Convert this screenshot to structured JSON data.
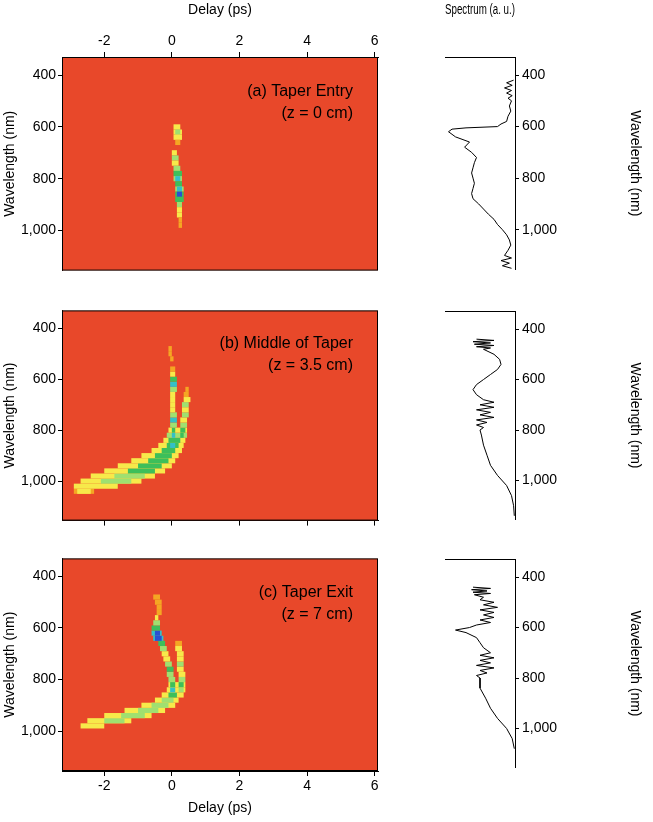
{
  "chart_data": [
    {
      "type": "heatmap",
      "annotation": [
        "(a) Taper Entry",
        "(z = 0 cm)"
      ],
      "xlabel": "Delay (ps)",
      "ylabel": "Wavelength (nm)",
      "xlim": [
        -3.25,
        6.1
      ],
      "xticks": [
        -2,
        0,
        2,
        4,
        6
      ],
      "ylim": [
        330,
        1155
      ],
      "yticks": [
        400,
        600,
        800,
        1000
      ],
      "grid": false,
      "zlim": [
        0,
        6
      ],
      "cell_height": 20,
      "cells": [
        [
          600,
          0.05,
          0.25,
          2
        ],
        [
          620,
          0.05,
          0.3,
          2
        ],
        [
          620,
          0.1,
          0.25,
          3
        ],
        [
          640,
          0.05,
          0.3,
          2
        ],
        [
          660,
          0.1,
          0.25,
          1
        ],
        [
          700,
          0.0,
          0.15,
          2
        ],
        [
          720,
          0.0,
          0.2,
          3
        ],
        [
          740,
          0.0,
          0.2,
          2
        ],
        [
          760,
          0.05,
          0.25,
          3
        ],
        [
          780,
          0.05,
          0.3,
          4
        ],
        [
          800,
          0.05,
          0.3,
          3
        ],
        [
          800,
          0.1,
          0.25,
          5
        ],
        [
          820,
          0.1,
          0.3,
          4
        ],
        [
          840,
          0.1,
          0.35,
          3
        ],
        [
          840,
          0.15,
          0.3,
          5
        ],
        [
          860,
          0.1,
          0.35,
          4
        ],
        [
          860,
          0.15,
          0.3,
          6
        ],
        [
          880,
          0.1,
          0.35,
          4
        ],
        [
          900,
          0.15,
          0.3,
          3
        ],
        [
          920,
          0.15,
          0.3,
          2
        ],
        [
          940,
          0.15,
          0.3,
          2
        ],
        [
          960,
          0.2,
          0.3,
          1
        ],
        [
          980,
          0.2,
          0.3,
          1
        ]
      ]
    },
    {
      "type": "heatmap",
      "annotation": [
        "(b) Middle of Taper",
        "(z = 3.5 cm)"
      ],
      "ylabel": "Wavelength (nm)",
      "xlim": [
        -3.25,
        6.1
      ],
      "xticks": [
        -2,
        0,
        2,
        4,
        6
      ],
      "ylim": [
        330,
        1155
      ],
      "yticks": [
        400,
        600,
        800,
        1000
      ],
      "grid": false,
      "tick_labels": "y",
      "zlim": [
        0,
        6
      ],
      "cell_height": 20,
      "cells": [
        [
          1040,
          -2.9,
          -2.3,
          1
        ],
        [
          1040,
          -2.8,
          -2.4,
          2
        ],
        [
          1020,
          -2.9,
          -1.6,
          2
        ],
        [
          1000,
          -2.7,
          -0.9,
          2
        ],
        [
          1000,
          -2.1,
          -1.2,
          3
        ],
        [
          980,
          -2.4,
          -0.5,
          2
        ],
        [
          980,
          -1.7,
          -0.8,
          3
        ],
        [
          960,
          -2.0,
          -0.2,
          2
        ],
        [
          960,
          -1.3,
          -0.5,
          4
        ],
        [
          940,
          -1.6,
          0.0,
          2
        ],
        [
          940,
          -1.0,
          -0.3,
          4
        ],
        [
          920,
          -1.2,
          0.1,
          2
        ],
        [
          920,
          -0.7,
          -0.1,
          4
        ],
        [
          900,
          -0.9,
          0.2,
          2
        ],
        [
          900,
          -0.5,
          0.0,
          4
        ],
        [
          880,
          -0.6,
          0.3,
          2
        ],
        [
          880,
          -0.3,
          0.1,
          4
        ],
        [
          860,
          -0.4,
          0.35,
          2
        ],
        [
          860,
          -0.15,
          0.2,
          4
        ],
        [
          860,
          -0.05,
          0.1,
          5
        ],
        [
          840,
          -0.25,
          0.4,
          2
        ],
        [
          840,
          -0.1,
          0.25,
          4
        ],
        [
          820,
          -0.15,
          0.45,
          3
        ],
        [
          820,
          0.0,
          0.1,
          5
        ],
        [
          820,
          0.25,
          0.35,
          4
        ],
        [
          800,
          -0.1,
          0.45,
          2
        ],
        [
          800,
          0.0,
          0.1,
          4
        ],
        [
          800,
          0.25,
          0.4,
          4
        ],
        [
          780,
          -0.05,
          0.15,
          3
        ],
        [
          780,
          0.25,
          0.45,
          3
        ],
        [
          760,
          -0.05,
          0.15,
          5
        ],
        [
          760,
          0.25,
          0.45,
          2
        ],
        [
          740,
          -0.05,
          0.15,
          3
        ],
        [
          740,
          0.3,
          0.5,
          3
        ],
        [
          720,
          -0.05,
          0.1,
          2
        ],
        [
          720,
          0.3,
          0.5,
          2
        ],
        [
          700,
          -0.05,
          0.1,
          2
        ],
        [
          700,
          0.3,
          0.5,
          3
        ],
        [
          680,
          -0.05,
          0.1,
          2
        ],
        [
          680,
          0.35,
          0.55,
          2
        ],
        [
          660,
          -0.05,
          0.1,
          2
        ],
        [
          660,
          0.35,
          0.5,
          1
        ],
        [
          640,
          -0.05,
          0.15,
          3
        ],
        [
          640,
          0.4,
          0.5,
          1
        ],
        [
          620,
          -0.05,
          0.15,
          5
        ],
        [
          600,
          -0.05,
          0.15,
          4
        ],
        [
          580,
          -0.05,
          0.1,
          2
        ],
        [
          560,
          -0.05,
          0.1,
          1
        ],
        [
          520,
          -0.05,
          0.05,
          1
        ],
        [
          500,
          -0.1,
          0.0,
          1
        ],
        [
          480,
          -0.1,
          0.0,
          1
        ]
      ]
    },
    {
      "type": "heatmap",
      "annotation": [
        "(c) Taper Exit",
        "(z = 7 cm)"
      ],
      "xlabel": "Delay (ps)",
      "ylabel": "Wavelength (nm)",
      "xlim": [
        -3.25,
        6.1
      ],
      "xticks": [
        -2,
        0,
        2,
        4,
        6
      ],
      "ylim": [
        330,
        1155
      ],
      "yticks": [
        400,
        600,
        800,
        1000
      ],
      "grid": false,
      "zlim": [
        0,
        6
      ],
      "cell_height": 20,
      "cells": [
        [
          980,
          -2.7,
          -2.0,
          2
        ],
        [
          960,
          -2.5,
          -1.2,
          2
        ],
        [
          960,
          -2.0,
          -1.4,
          3
        ],
        [
          940,
          -2.0,
          -0.6,
          2
        ],
        [
          940,
          -1.5,
          -0.8,
          3
        ],
        [
          920,
          -1.4,
          -0.2,
          2
        ],
        [
          920,
          -1.0,
          -0.4,
          3
        ],
        [
          900,
          -0.9,
          0.1,
          2
        ],
        [
          900,
          -0.6,
          -0.1,
          3
        ],
        [
          880,
          -0.5,
          0.2,
          2
        ],
        [
          880,
          -0.3,
          0.05,
          3
        ],
        [
          860,
          -0.3,
          0.35,
          2
        ],
        [
          860,
          -0.1,
          0.15,
          4
        ],
        [
          840,
          -0.15,
          0.4,
          2
        ],
        [
          840,
          -0.05,
          0.1,
          5
        ],
        [
          840,
          0.2,
          0.35,
          3
        ],
        [
          820,
          -0.1,
          0.4,
          2
        ],
        [
          820,
          -0.05,
          0.1,
          4
        ],
        [
          820,
          0.2,
          0.35,
          4
        ],
        [
          800,
          -0.1,
          0.1,
          3
        ],
        [
          800,
          0.2,
          0.4,
          3
        ],
        [
          780,
          -0.15,
          0.05,
          3
        ],
        [
          780,
          0.2,
          0.4,
          2
        ],
        [
          760,
          -0.15,
          0.05,
          4
        ],
        [
          760,
          0.15,
          0.35,
          2
        ],
        [
          740,
          -0.2,
          0.0,
          3
        ],
        [
          740,
          0.15,
          0.35,
          3
        ],
        [
          720,
          -0.25,
          -0.05,
          2
        ],
        [
          720,
          0.15,
          0.35,
          2
        ],
        [
          700,
          -0.3,
          -0.1,
          2
        ],
        [
          700,
          0.15,
          0.35,
          2
        ],
        [
          680,
          -0.35,
          -0.15,
          3
        ],
        [
          680,
          0.1,
          0.3,
          2
        ],
        [
          660,
          -0.4,
          -0.2,
          4
        ],
        [
          660,
          0.1,
          0.3,
          1
        ],
        [
          640,
          -0.55,
          -0.25,
          5
        ],
        [
          640,
          -0.5,
          -0.3,
          6
        ],
        [
          620,
          -0.6,
          -0.3,
          5
        ],
        [
          620,
          -0.5,
          -0.35,
          6
        ],
        [
          600,
          -0.6,
          -0.35,
          4
        ],
        [
          580,
          -0.55,
          -0.35,
          3
        ],
        [
          560,
          -0.5,
          -0.4,
          2
        ],
        [
          540,
          -0.45,
          -0.3,
          1
        ],
        [
          520,
          -0.45,
          -0.3,
          1
        ],
        [
          500,
          -0.5,
          -0.3,
          1
        ],
        [
          480,
          -0.55,
          -0.35,
          1
        ]
      ]
    },
    {
      "type": "line",
      "xlabel": "Spectrum (a. u.)",
      "ylabel": "Wavelength (nm)",
      "xlim": [
        0,
        1
      ],
      "ylim": [
        330,
        1155
      ],
      "yticks": [
        400,
        600,
        800,
        1000
      ],
      "tick_labels": "y",
      "grid": false,
      "color": "#000000",
      "wavelength": [
        420,
        430,
        440,
        450,
        460,
        470,
        480,
        490,
        500,
        520,
        540,
        560,
        580,
        590,
        600,
        605,
        610,
        620,
        640,
        660,
        680,
        700,
        720,
        740,
        760,
        780,
        800,
        820,
        840,
        860,
        880,
        900,
        920,
        940,
        960,
        980,
        1000,
        1020,
        1040,
        1060,
        1080,
        1100,
        1110,
        1120,
        1130,
        1140,
        1150
      ],
      "intensity": [
        0.02,
        0.12,
        0.04,
        0.15,
        0.05,
        0.12,
        0.04,
        0.1,
        0.05,
        0.08,
        0.06,
        0.1,
        0.12,
        0.2,
        0.25,
        0.7,
        0.9,
        0.95,
        0.85,
        0.65,
        0.72,
        0.62,
        0.55,
        0.58,
        0.6,
        0.62,
        0.6,
        0.58,
        0.6,
        0.62,
        0.6,
        0.52,
        0.45,
        0.38,
        0.3,
        0.25,
        0.18,
        0.12,
        0.08,
        0.06,
        0.1,
        0.15,
        0.05,
        0.2,
        0.08,
        0.18,
        0.05
      ]
    },
    {
      "type": "line",
      "ylabel": "Wavelength (nm)",
      "xlim": [
        0,
        1
      ],
      "ylim": [
        330,
        1155
      ],
      "yticks": [
        400,
        600,
        800,
        1000
      ],
      "tick_labels": "y",
      "grid": false,
      "color": "#000000",
      "wavelength": [
        440,
        445,
        450,
        455,
        460,
        465,
        470,
        475,
        480,
        500,
        520,
        540,
        560,
        580,
        600,
        620,
        640,
        660,
        680,
        690,
        700,
        710,
        720,
        730,
        740,
        750,
        760,
        770,
        780,
        790,
        800,
        820,
        860,
        900,
        940,
        980,
        1020,
        1060,
        1100,
        1140
      ],
      "intensity": [
        0.55,
        0.3,
        0.6,
        0.35,
        0.58,
        0.3,
        0.55,
        0.35,
        0.45,
        0.3,
        0.22,
        0.2,
        0.25,
        0.35,
        0.45,
        0.55,
        0.6,
        0.55,
        0.45,
        0.3,
        0.5,
        0.3,
        0.55,
        0.35,
        0.5,
        0.3,
        0.55,
        0.4,
        0.55,
        0.45,
        0.5,
        0.48,
        0.45,
        0.4,
        0.35,
        0.25,
        0.12,
        0.05,
        0.02,
        0.01
      ]
    },
    {
      "type": "line",
      "ylabel": "Wavelength (nm)",
      "xlim": [
        0,
        1
      ],
      "ylim": [
        330,
        1155
      ],
      "yticks": [
        400,
        600,
        800,
        1000
      ],
      "tick_labels": "y",
      "grid": false,
      "color": "#000000",
      "wavelength": [
        440,
        445,
        450,
        455,
        460,
        465,
        470,
        480,
        490,
        500,
        510,
        520,
        530,
        540,
        550,
        560,
        570,
        580,
        590,
        600,
        610,
        620,
        640,
        660,
        680,
        700,
        710,
        720,
        730,
        740,
        750,
        760,
        770,
        780,
        790,
        800,
        840,
        880,
        920,
        960,
        1000,
        1040,
        1080
      ],
      "intensity": [
        0.6,
        0.35,
        0.62,
        0.4,
        0.6,
        0.35,
        0.58,
        0.45,
        0.5,
        0.3,
        0.45,
        0.25,
        0.5,
        0.3,
        0.45,
        0.3,
        0.5,
        0.35,
        0.55,
        0.65,
        0.85,
        0.7,
        0.55,
        0.5,
        0.45,
        0.35,
        0.5,
        0.3,
        0.5,
        0.35,
        0.55,
        0.3,
        0.5,
        0.4,
        0.55,
        0.5,
        0.5,
        0.42,
        0.35,
        0.25,
        0.12,
        0.04,
        0.01
      ]
    }
  ]
}
